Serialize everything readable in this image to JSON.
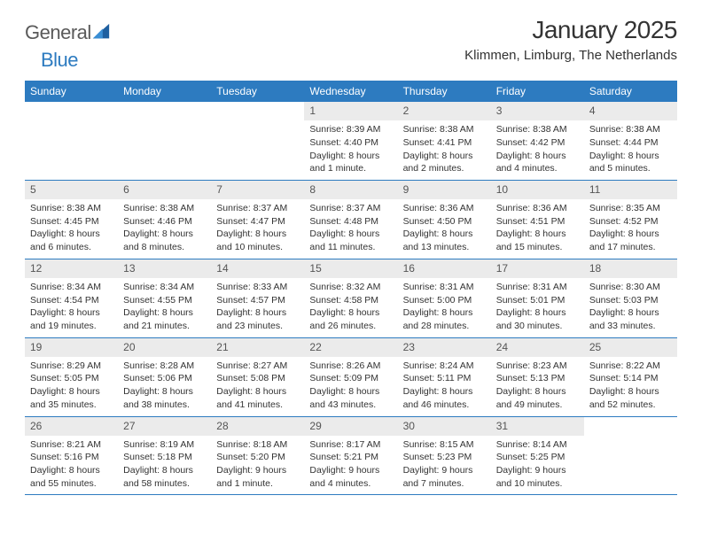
{
  "colors": {
    "header_bg": "#2d7bc0",
    "header_text": "#ffffff",
    "daynum_bg": "#ebebeb",
    "daynum_text": "#555555",
    "body_text": "#333333",
    "border": "#2d7bc0",
    "page_bg": "#ffffff",
    "logo_gray": "#5a5a5a",
    "logo_blue": "#2d7bc0"
  },
  "logo": {
    "part1": "General",
    "part2": "Blue"
  },
  "title": "January 2025",
  "location": "Klimmen, Limburg, The Netherlands",
  "weekdays": [
    "Sunday",
    "Monday",
    "Tuesday",
    "Wednesday",
    "Thursday",
    "Friday",
    "Saturday"
  ],
  "leading_blanks": 3,
  "days": [
    {
      "n": "1",
      "sunrise": "Sunrise: 8:39 AM",
      "sunset": "Sunset: 4:40 PM",
      "day1": "Daylight: 8 hours",
      "day2": "and 1 minute."
    },
    {
      "n": "2",
      "sunrise": "Sunrise: 8:38 AM",
      "sunset": "Sunset: 4:41 PM",
      "day1": "Daylight: 8 hours",
      "day2": "and 2 minutes."
    },
    {
      "n": "3",
      "sunrise": "Sunrise: 8:38 AM",
      "sunset": "Sunset: 4:42 PM",
      "day1": "Daylight: 8 hours",
      "day2": "and 4 minutes."
    },
    {
      "n": "4",
      "sunrise": "Sunrise: 8:38 AM",
      "sunset": "Sunset: 4:44 PM",
      "day1": "Daylight: 8 hours",
      "day2": "and 5 minutes."
    },
    {
      "n": "5",
      "sunrise": "Sunrise: 8:38 AM",
      "sunset": "Sunset: 4:45 PM",
      "day1": "Daylight: 8 hours",
      "day2": "and 6 minutes."
    },
    {
      "n": "6",
      "sunrise": "Sunrise: 8:38 AM",
      "sunset": "Sunset: 4:46 PM",
      "day1": "Daylight: 8 hours",
      "day2": "and 8 minutes."
    },
    {
      "n": "7",
      "sunrise": "Sunrise: 8:37 AM",
      "sunset": "Sunset: 4:47 PM",
      "day1": "Daylight: 8 hours",
      "day2": "and 10 minutes."
    },
    {
      "n": "8",
      "sunrise": "Sunrise: 8:37 AM",
      "sunset": "Sunset: 4:48 PM",
      "day1": "Daylight: 8 hours",
      "day2": "and 11 minutes."
    },
    {
      "n": "9",
      "sunrise": "Sunrise: 8:36 AM",
      "sunset": "Sunset: 4:50 PM",
      "day1": "Daylight: 8 hours",
      "day2": "and 13 minutes."
    },
    {
      "n": "10",
      "sunrise": "Sunrise: 8:36 AM",
      "sunset": "Sunset: 4:51 PM",
      "day1": "Daylight: 8 hours",
      "day2": "and 15 minutes."
    },
    {
      "n": "11",
      "sunrise": "Sunrise: 8:35 AM",
      "sunset": "Sunset: 4:52 PM",
      "day1": "Daylight: 8 hours",
      "day2": "and 17 minutes."
    },
    {
      "n": "12",
      "sunrise": "Sunrise: 8:34 AM",
      "sunset": "Sunset: 4:54 PM",
      "day1": "Daylight: 8 hours",
      "day2": "and 19 minutes."
    },
    {
      "n": "13",
      "sunrise": "Sunrise: 8:34 AM",
      "sunset": "Sunset: 4:55 PM",
      "day1": "Daylight: 8 hours",
      "day2": "and 21 minutes."
    },
    {
      "n": "14",
      "sunrise": "Sunrise: 8:33 AM",
      "sunset": "Sunset: 4:57 PM",
      "day1": "Daylight: 8 hours",
      "day2": "and 23 minutes."
    },
    {
      "n": "15",
      "sunrise": "Sunrise: 8:32 AM",
      "sunset": "Sunset: 4:58 PM",
      "day1": "Daylight: 8 hours",
      "day2": "and 26 minutes."
    },
    {
      "n": "16",
      "sunrise": "Sunrise: 8:31 AM",
      "sunset": "Sunset: 5:00 PM",
      "day1": "Daylight: 8 hours",
      "day2": "and 28 minutes."
    },
    {
      "n": "17",
      "sunrise": "Sunrise: 8:31 AM",
      "sunset": "Sunset: 5:01 PM",
      "day1": "Daylight: 8 hours",
      "day2": "and 30 minutes."
    },
    {
      "n": "18",
      "sunrise": "Sunrise: 8:30 AM",
      "sunset": "Sunset: 5:03 PM",
      "day1": "Daylight: 8 hours",
      "day2": "and 33 minutes."
    },
    {
      "n": "19",
      "sunrise": "Sunrise: 8:29 AM",
      "sunset": "Sunset: 5:05 PM",
      "day1": "Daylight: 8 hours",
      "day2": "and 35 minutes."
    },
    {
      "n": "20",
      "sunrise": "Sunrise: 8:28 AM",
      "sunset": "Sunset: 5:06 PM",
      "day1": "Daylight: 8 hours",
      "day2": "and 38 minutes."
    },
    {
      "n": "21",
      "sunrise": "Sunrise: 8:27 AM",
      "sunset": "Sunset: 5:08 PM",
      "day1": "Daylight: 8 hours",
      "day2": "and 41 minutes."
    },
    {
      "n": "22",
      "sunrise": "Sunrise: 8:26 AM",
      "sunset": "Sunset: 5:09 PM",
      "day1": "Daylight: 8 hours",
      "day2": "and 43 minutes."
    },
    {
      "n": "23",
      "sunrise": "Sunrise: 8:24 AM",
      "sunset": "Sunset: 5:11 PM",
      "day1": "Daylight: 8 hours",
      "day2": "and 46 minutes."
    },
    {
      "n": "24",
      "sunrise": "Sunrise: 8:23 AM",
      "sunset": "Sunset: 5:13 PM",
      "day1": "Daylight: 8 hours",
      "day2": "and 49 minutes."
    },
    {
      "n": "25",
      "sunrise": "Sunrise: 8:22 AM",
      "sunset": "Sunset: 5:14 PM",
      "day1": "Daylight: 8 hours",
      "day2": "and 52 minutes."
    },
    {
      "n": "26",
      "sunrise": "Sunrise: 8:21 AM",
      "sunset": "Sunset: 5:16 PM",
      "day1": "Daylight: 8 hours",
      "day2": "and 55 minutes."
    },
    {
      "n": "27",
      "sunrise": "Sunrise: 8:19 AM",
      "sunset": "Sunset: 5:18 PM",
      "day1": "Daylight: 8 hours",
      "day2": "and 58 minutes."
    },
    {
      "n": "28",
      "sunrise": "Sunrise: 8:18 AM",
      "sunset": "Sunset: 5:20 PM",
      "day1": "Daylight: 9 hours",
      "day2": "and 1 minute."
    },
    {
      "n": "29",
      "sunrise": "Sunrise: 8:17 AM",
      "sunset": "Sunset: 5:21 PM",
      "day1": "Daylight: 9 hours",
      "day2": "and 4 minutes."
    },
    {
      "n": "30",
      "sunrise": "Sunrise: 8:15 AM",
      "sunset": "Sunset: 5:23 PM",
      "day1": "Daylight: 9 hours",
      "day2": "and 7 minutes."
    },
    {
      "n": "31",
      "sunrise": "Sunrise: 8:14 AM",
      "sunset": "Sunset: 5:25 PM",
      "day1": "Daylight: 9 hours",
      "day2": "and 10 minutes."
    }
  ]
}
